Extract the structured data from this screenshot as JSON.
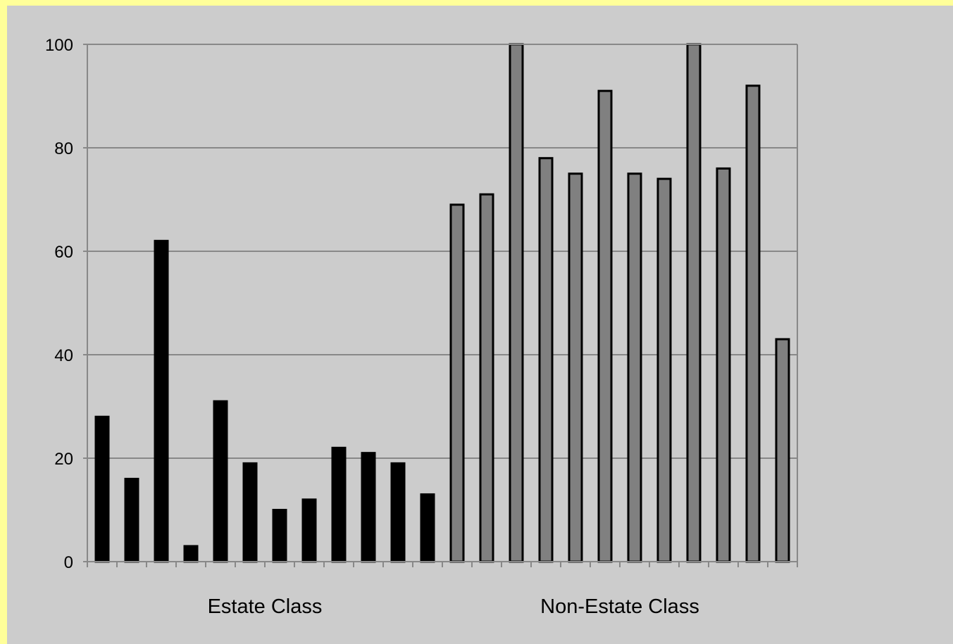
{
  "chart_data": {
    "type": "bar",
    "title": "",
    "xlabel": "",
    "ylabel": "",
    "ylim": [
      0,
      100
    ],
    "yticks": [
      "0",
      "20",
      "40",
      "60",
      "80",
      "100"
    ],
    "grid": true,
    "legend": "none",
    "colors": {
      "page_border": "#ffff99",
      "plot_background": "#cccccc",
      "estate_bar": "#000000",
      "non_estate_bar": "#808080",
      "bar_outline": "#000000",
      "gridline": "#444444",
      "axis": "#888888"
    },
    "groups": [
      {
        "label": "Estate Class",
        "values": [
          28,
          16,
          62,
          3,
          31,
          19,
          10,
          12,
          22,
          21,
          19,
          13
        ]
      },
      {
        "label": "Non-Estate Class",
        "values": [
          69,
          71,
          100,
          78,
          75,
          91,
          75,
          74,
          100,
          76,
          92,
          43
        ]
      }
    ]
  }
}
